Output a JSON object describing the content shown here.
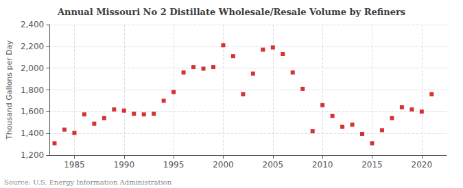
{
  "chart_data": {
    "type": "scatter",
    "title": "Annual Missouri No 2 Distillate Wholesale/Resale Volume by Refiners",
    "ylabel": "Thousand Gallons per Day",
    "source": "Source: U.S. Energy Information Administration",
    "x": [
      1983,
      1984,
      1985,
      1986,
      1987,
      1988,
      1989,
      1990,
      1991,
      1992,
      1993,
      1994,
      1995,
      1996,
      1997,
      1998,
      1999,
      2000,
      2001,
      2002,
      2003,
      2004,
      2005,
      2006,
      2007,
      2008,
      2009,
      2010,
      2011,
      2012,
      2013,
      2014,
      2015,
      2016,
      2017,
      2018,
      2019,
      2020,
      2021
    ],
    "values": [
      1310,
      1435,
      1405,
      1575,
      1490,
      1540,
      1620,
      1610,
      1580,
      1575,
      1580,
      1700,
      1780,
      1960,
      2010,
      1995,
      2010,
      2210,
      2110,
      1760,
      1950,
      2170,
      2190,
      2130,
      1960,
      1810,
      1420,
      1660,
      1560,
      1460,
      1480,
      1395,
      1310,
      1430,
      1540,
      1640,
      1620,
      1600,
      1760
    ],
    "color": "#cc0000",
    "marker": "square",
    "xlim": [
      1982.5,
      2022.5
    ],
    "xticks": [
      1985,
      1990,
      1995,
      2000,
      2005,
      2010,
      2015,
      2020
    ],
    "ylim": [
      1200,
      2400
    ],
    "yticks": [
      {
        "value": 1200,
        "label": "1,200"
      },
      {
        "value": 1400,
        "label": "1,400"
      },
      {
        "value": 1600,
        "label": "1,600"
      },
      {
        "value": 1800,
        "label": "1,800"
      },
      {
        "value": 2000,
        "label": "2,000"
      },
      {
        "value": 2200,
        "label": "2,200"
      },
      {
        "value": 2400,
        "label": "2,400"
      }
    ],
    "grid": true
  }
}
